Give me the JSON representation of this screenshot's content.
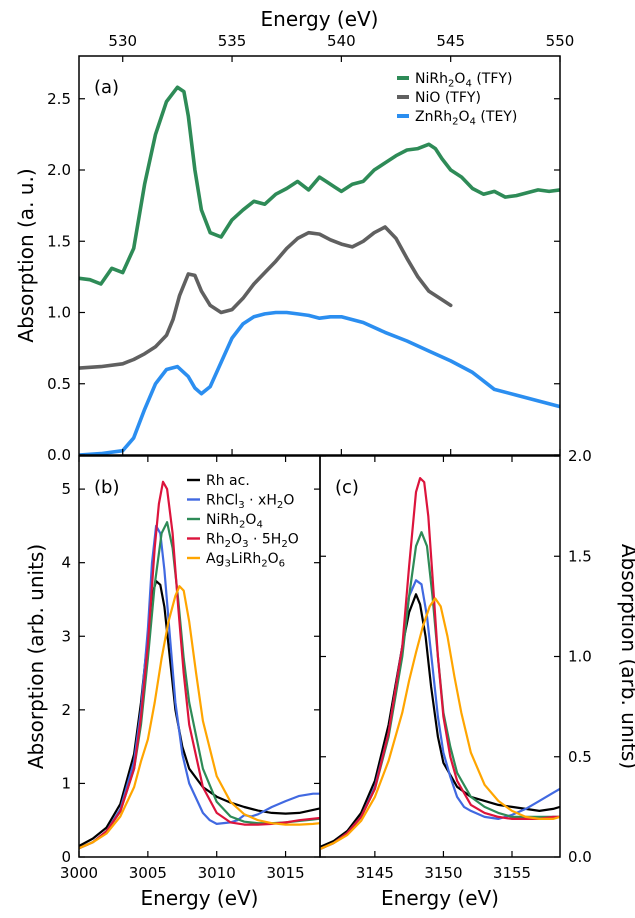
{
  "chart_data": [
    {
      "type": "line",
      "panel_label": "(a)",
      "xlabel": "Energy (eV)",
      "ylabel": "Absorption (a. u.)",
      "x_axis_position": "top",
      "xlim": [
        528,
        550
      ],
      "ylim": [
        0,
        2.8
      ],
      "xticks": [
        530,
        535,
        540,
        545,
        550
      ],
      "xtick_labels": [
        "530",
        "535",
        "540",
        "545",
        "550"
      ],
      "yticks": [
        0,
        0.5,
        1,
        1.5,
        2,
        2.5
      ],
      "ytick_labels": [
        "0.0",
        "0.5",
        "1.0",
        "1.5",
        "2.0",
        "2.5"
      ],
      "legend_position": "top-right",
      "series": [
        {
          "name": "NiRh₂O₄ (TFY)",
          "color": "#2e8b57",
          "x": [
            528.0,
            528.5,
            529.0,
            529.5,
            530.0,
            530.5,
            531.0,
            531.5,
            532.0,
            532.5,
            532.8,
            533.0,
            533.3,
            533.6,
            534.0,
            534.5,
            535.0,
            535.5,
            536.0,
            536.5,
            537.0,
            537.5,
            538.0,
            538.5,
            539.0,
            539.3,
            539.7,
            540.0,
            540.5,
            541.0,
            541.5,
            542.0,
            542.5,
            543.0,
            543.5,
            544.0,
            544.3,
            544.6,
            545.0,
            545.5,
            546.0,
            546.5,
            547.0,
            547.5,
            548.0,
            548.5,
            549.0,
            549.5,
            550.0
          ],
          "y": [
            1.24,
            1.23,
            1.2,
            1.31,
            1.28,
            1.45,
            1.9,
            2.25,
            2.48,
            2.58,
            2.55,
            2.38,
            2.0,
            1.72,
            1.56,
            1.53,
            1.65,
            1.72,
            1.78,
            1.76,
            1.83,
            1.87,
            1.92,
            1.86,
            1.95,
            1.92,
            1.88,
            1.85,
            1.9,
            1.92,
            2.0,
            2.05,
            2.1,
            2.14,
            2.15,
            2.18,
            2.15,
            2.08,
            2.0,
            1.95,
            1.87,
            1.83,
            1.85,
            1.81,
            1.82,
            1.84,
            1.86,
            1.85,
            1.86
          ]
        },
        {
          "name": "NiO (TFY)",
          "color": "#606060",
          "x": [
            528.0,
            529.0,
            530.0,
            530.5,
            531.0,
            531.5,
            532.0,
            532.3,
            532.6,
            533.0,
            533.3,
            533.6,
            534.0,
            534.5,
            535.0,
            535.5,
            536.0,
            536.5,
            537.0,
            537.5,
            538.0,
            538.5,
            539.0,
            539.5,
            540.0,
            540.5,
            541.0,
            541.5,
            542.0,
            542.5,
            543.0,
            543.5,
            544.0,
            544.5,
            545.0
          ],
          "y": [
            0.61,
            0.62,
            0.64,
            0.67,
            0.71,
            0.76,
            0.84,
            0.95,
            1.12,
            1.27,
            1.26,
            1.15,
            1.05,
            1.0,
            1.02,
            1.1,
            1.2,
            1.28,
            1.36,
            1.45,
            1.52,
            1.56,
            1.55,
            1.51,
            1.48,
            1.46,
            1.5,
            1.56,
            1.6,
            1.52,
            1.38,
            1.25,
            1.15,
            1.1,
            1.05
          ]
        },
        {
          "name": "ZnRh₂O₄ (TEY)",
          "color": "#2b8ef0",
          "x": [
            528.0,
            529.0,
            530.0,
            530.5,
            531.0,
            531.5,
            532.0,
            532.5,
            533.0,
            533.3,
            533.6,
            534.0,
            534.5,
            535.0,
            535.5,
            536.0,
            536.5,
            537.0,
            537.5,
            538.0,
            538.5,
            539.0,
            539.5,
            540.0,
            541.0,
            542.0,
            543.0,
            544.0,
            545.0,
            546.0,
            546.5,
            547.0,
            548.0,
            549.0,
            550.0
          ],
          "y": [
            0.0,
            0.01,
            0.03,
            0.12,
            0.32,
            0.5,
            0.6,
            0.62,
            0.55,
            0.47,
            0.43,
            0.48,
            0.65,
            0.82,
            0.92,
            0.97,
            0.99,
            1.0,
            1.0,
            0.99,
            0.98,
            0.96,
            0.97,
            0.97,
            0.93,
            0.86,
            0.8,
            0.73,
            0.66,
            0.58,
            0.52,
            0.46,
            0.42,
            0.38,
            0.34
          ]
        }
      ]
    },
    {
      "type": "line",
      "panel_label": "(b)",
      "xlabel": "Energy (eV)",
      "ylabel": "Absorption (arb. units)",
      "xlim": [
        3000,
        3017.5
      ],
      "ylim": [
        0,
        5.45
      ],
      "xticks": [
        3000,
        3005,
        3010,
        3015
      ],
      "xtick_labels": [
        "3000",
        "3005",
        "3010",
        "3015"
      ],
      "yticks": [
        0,
        1,
        2,
        3,
        4,
        5
      ],
      "ytick_labels": [
        "0",
        "1",
        "2",
        "3",
        "4",
        "5"
      ],
      "legend_position": "top-right",
      "series": [
        {
          "name": "Rh ac.",
          "color": "#000000",
          "x": [
            3000,
            3001,
            3002,
            3003,
            3004,
            3004.5,
            3005,
            3005.3,
            3005.6,
            3005.9,
            3006.2,
            3006.6,
            3007,
            3007.5,
            3008,
            3009,
            3010,
            3011,
            3012,
            3013,
            3014,
            3015,
            3016,
            3017,
            3017.5
          ],
          "y": [
            0.15,
            0.25,
            0.4,
            0.72,
            1.4,
            2.1,
            3.0,
            3.55,
            3.75,
            3.7,
            3.4,
            2.7,
            2.0,
            1.5,
            1.2,
            0.95,
            0.82,
            0.74,
            0.68,
            0.63,
            0.6,
            0.59,
            0.6,
            0.64,
            0.66
          ]
        },
        {
          "name": "RhCl₃ · xH₂O",
          "color": "#4169e1",
          "x": [
            3000,
            3001,
            3002,
            3003,
            3004,
            3004.5,
            3005,
            3005.3,
            3005.6,
            3005.9,
            3006.2,
            3006.6,
            3007,
            3007.5,
            3008,
            3009,
            3009.5,
            3010,
            3011,
            3011.5,
            3012,
            3012.5,
            3013,
            3014,
            3015,
            3016,
            3017,
            3017.5
          ],
          "y": [
            0.12,
            0.2,
            0.35,
            0.65,
            1.3,
            2.0,
            3.1,
            4.0,
            4.5,
            4.4,
            3.9,
            3.0,
            2.1,
            1.4,
            1.0,
            0.6,
            0.5,
            0.45,
            0.47,
            0.5,
            0.57,
            0.55,
            0.58,
            0.68,
            0.76,
            0.83,
            0.86,
            0.86
          ]
        },
        {
          "name": "NiRh₂O₄",
          "color": "#2e8b57",
          "x": [
            3000,
            3001,
            3002,
            3003,
            3004,
            3004.5,
            3005,
            3005.5,
            3006,
            3006.4,
            3006.8,
            3007.2,
            3007.6,
            3008,
            3009,
            3010,
            3011,
            3012,
            3013,
            3014,
            3015,
            3016,
            3017,
            3017.5
          ],
          "y": [
            0.12,
            0.2,
            0.35,
            0.62,
            1.2,
            1.8,
            2.7,
            3.7,
            4.4,
            4.55,
            4.2,
            3.5,
            2.7,
            2.1,
            1.2,
            0.75,
            0.55,
            0.48,
            0.46,
            0.46,
            0.47,
            0.49,
            0.51,
            0.52
          ]
        },
        {
          "name": "Rh₂O₃ · 5H₂O",
          "color": "#dc143c",
          "x": [
            3000,
            3001,
            3002,
            3003,
            3004,
            3004.5,
            3005,
            3005.5,
            3005.8,
            3006.1,
            3006.4,
            3006.8,
            3007.2,
            3007.6,
            3008,
            3009,
            3010,
            3011,
            3012,
            3013,
            3014,
            3015,
            3016,
            3017,
            3017.5
          ],
          "y": [
            0.12,
            0.2,
            0.35,
            0.62,
            1.2,
            1.9,
            2.9,
            4.2,
            4.8,
            5.1,
            5.0,
            4.4,
            3.4,
            2.5,
            1.8,
            0.95,
            0.6,
            0.47,
            0.44,
            0.44,
            0.45,
            0.47,
            0.5,
            0.52,
            0.53
          ]
        },
        {
          "name": "Ag₃LiRh₂O₆",
          "color": "#ffa500",
          "x": [
            3000,
            3001,
            3002,
            3003,
            3004,
            3004.5,
            3005,
            3005.5,
            3006,
            3006.5,
            3007,
            3007.3,
            3007.6,
            3008,
            3008.5,
            3009,
            3010,
            3011,
            3012,
            3013,
            3014,
            3015,
            3016,
            3017,
            3017.5
          ],
          "y": [
            0.12,
            0.2,
            0.32,
            0.55,
            0.95,
            1.3,
            1.6,
            2.1,
            2.7,
            3.2,
            3.55,
            3.68,
            3.62,
            3.2,
            2.5,
            1.85,
            1.1,
            0.75,
            0.58,
            0.5,
            0.46,
            0.44,
            0.44,
            0.45,
            0.46
          ]
        }
      ]
    },
    {
      "type": "line",
      "panel_label": "(c)",
      "xlabel": "Energy (eV)",
      "ylabel": "Absorption (arb. units)",
      "y_axis_position": "right",
      "xlim": [
        3141,
        3158.5
      ],
      "ylim": [
        0,
        2.0
      ],
      "xticks": [
        3145,
        3150,
        3155
      ],
      "xtick_labels": [
        "3145",
        "3150",
        "3155"
      ],
      "yticks": [
        0,
        0.5,
        1,
        1.5,
        2
      ],
      "ytick_labels": [
        "0.0",
        "0.5",
        "1.0",
        "1.5",
        "2.0"
      ],
      "series": [
        {
          "color": "#000000",
          "x": [
            3141,
            3142,
            3143,
            3144,
            3145,
            3146,
            3147,
            3147.5,
            3148,
            3148.3,
            3148.7,
            3149.1,
            3149.6,
            3150,
            3151,
            3152,
            3153,
            3154,
            3155,
            3156,
            3157,
            3158,
            3158.5
          ],
          "y": [
            0.05,
            0.08,
            0.13,
            0.22,
            0.38,
            0.66,
            1.05,
            1.22,
            1.31,
            1.26,
            1.1,
            0.85,
            0.6,
            0.47,
            0.35,
            0.3,
            0.28,
            0.26,
            0.25,
            0.24,
            0.23,
            0.24,
            0.25
          ]
        },
        {
          "color": "#4169e1",
          "x": [
            3141,
            3142,
            3143,
            3144,
            3145,
            3146,
            3147,
            3147.5,
            3148,
            3148.4,
            3148.8,
            3149.2,
            3149.6,
            3150,
            3150.5,
            3151,
            3151.5,
            3152,
            3153,
            3154,
            3155,
            3156,
            3157,
            3158,
            3158.5
          ],
          "y": [
            0.04,
            0.07,
            0.12,
            0.2,
            0.35,
            0.62,
            1.05,
            1.3,
            1.38,
            1.36,
            1.2,
            0.95,
            0.7,
            0.52,
            0.4,
            0.3,
            0.25,
            0.23,
            0.2,
            0.19,
            0.21,
            0.24,
            0.28,
            0.32,
            0.34
          ]
        },
        {
          "color": "#2e8b57",
          "x": [
            3141,
            3142,
            3143,
            3144,
            3145,
            3146,
            3147,
            3147.5,
            3148,
            3148.4,
            3148.8,
            3149.2,
            3149.6,
            3150,
            3150.5,
            3151,
            3152,
            3153,
            3154,
            3155,
            3156,
            3157,
            3158,
            3158.5
          ],
          "y": [
            0.04,
            0.07,
            0.12,
            0.2,
            0.34,
            0.6,
            1.0,
            1.3,
            1.55,
            1.62,
            1.55,
            1.3,
            1.0,
            0.72,
            0.55,
            0.42,
            0.3,
            0.25,
            0.22,
            0.2,
            0.2,
            0.2,
            0.2,
            0.2
          ]
        },
        {
          "color": "#dc143c",
          "x": [
            3141,
            3142,
            3143,
            3144,
            3145,
            3146,
            3147,
            3147.5,
            3148,
            3148.3,
            3148.6,
            3148.9,
            3149.2,
            3149.6,
            3150,
            3150.5,
            3151,
            3152,
            3153,
            3154,
            3155,
            3156,
            3157,
            3158,
            3158.5
          ],
          "y": [
            0.04,
            0.07,
            0.12,
            0.2,
            0.34,
            0.62,
            1.05,
            1.45,
            1.82,
            1.89,
            1.87,
            1.7,
            1.4,
            1.0,
            0.7,
            0.5,
            0.38,
            0.26,
            0.22,
            0.2,
            0.19,
            0.19,
            0.19,
            0.2,
            0.2
          ]
        },
        {
          "color": "#ffa500",
          "x": [
            3141,
            3142,
            3143,
            3144,
            3145,
            3146,
            3147,
            3147.5,
            3148,
            3148.5,
            3149,
            3149.4,
            3149.8,
            3150.3,
            3150.8,
            3151.3,
            3152,
            3153,
            3154,
            3155,
            3156,
            3157,
            3158,
            3158.5
          ],
          "y": [
            0.04,
            0.07,
            0.11,
            0.18,
            0.3,
            0.48,
            0.72,
            0.88,
            1.02,
            1.15,
            1.25,
            1.29,
            1.25,
            1.1,
            0.9,
            0.72,
            0.52,
            0.36,
            0.28,
            0.23,
            0.2,
            0.19,
            0.19,
            0.2
          ]
        }
      ]
    }
  ]
}
